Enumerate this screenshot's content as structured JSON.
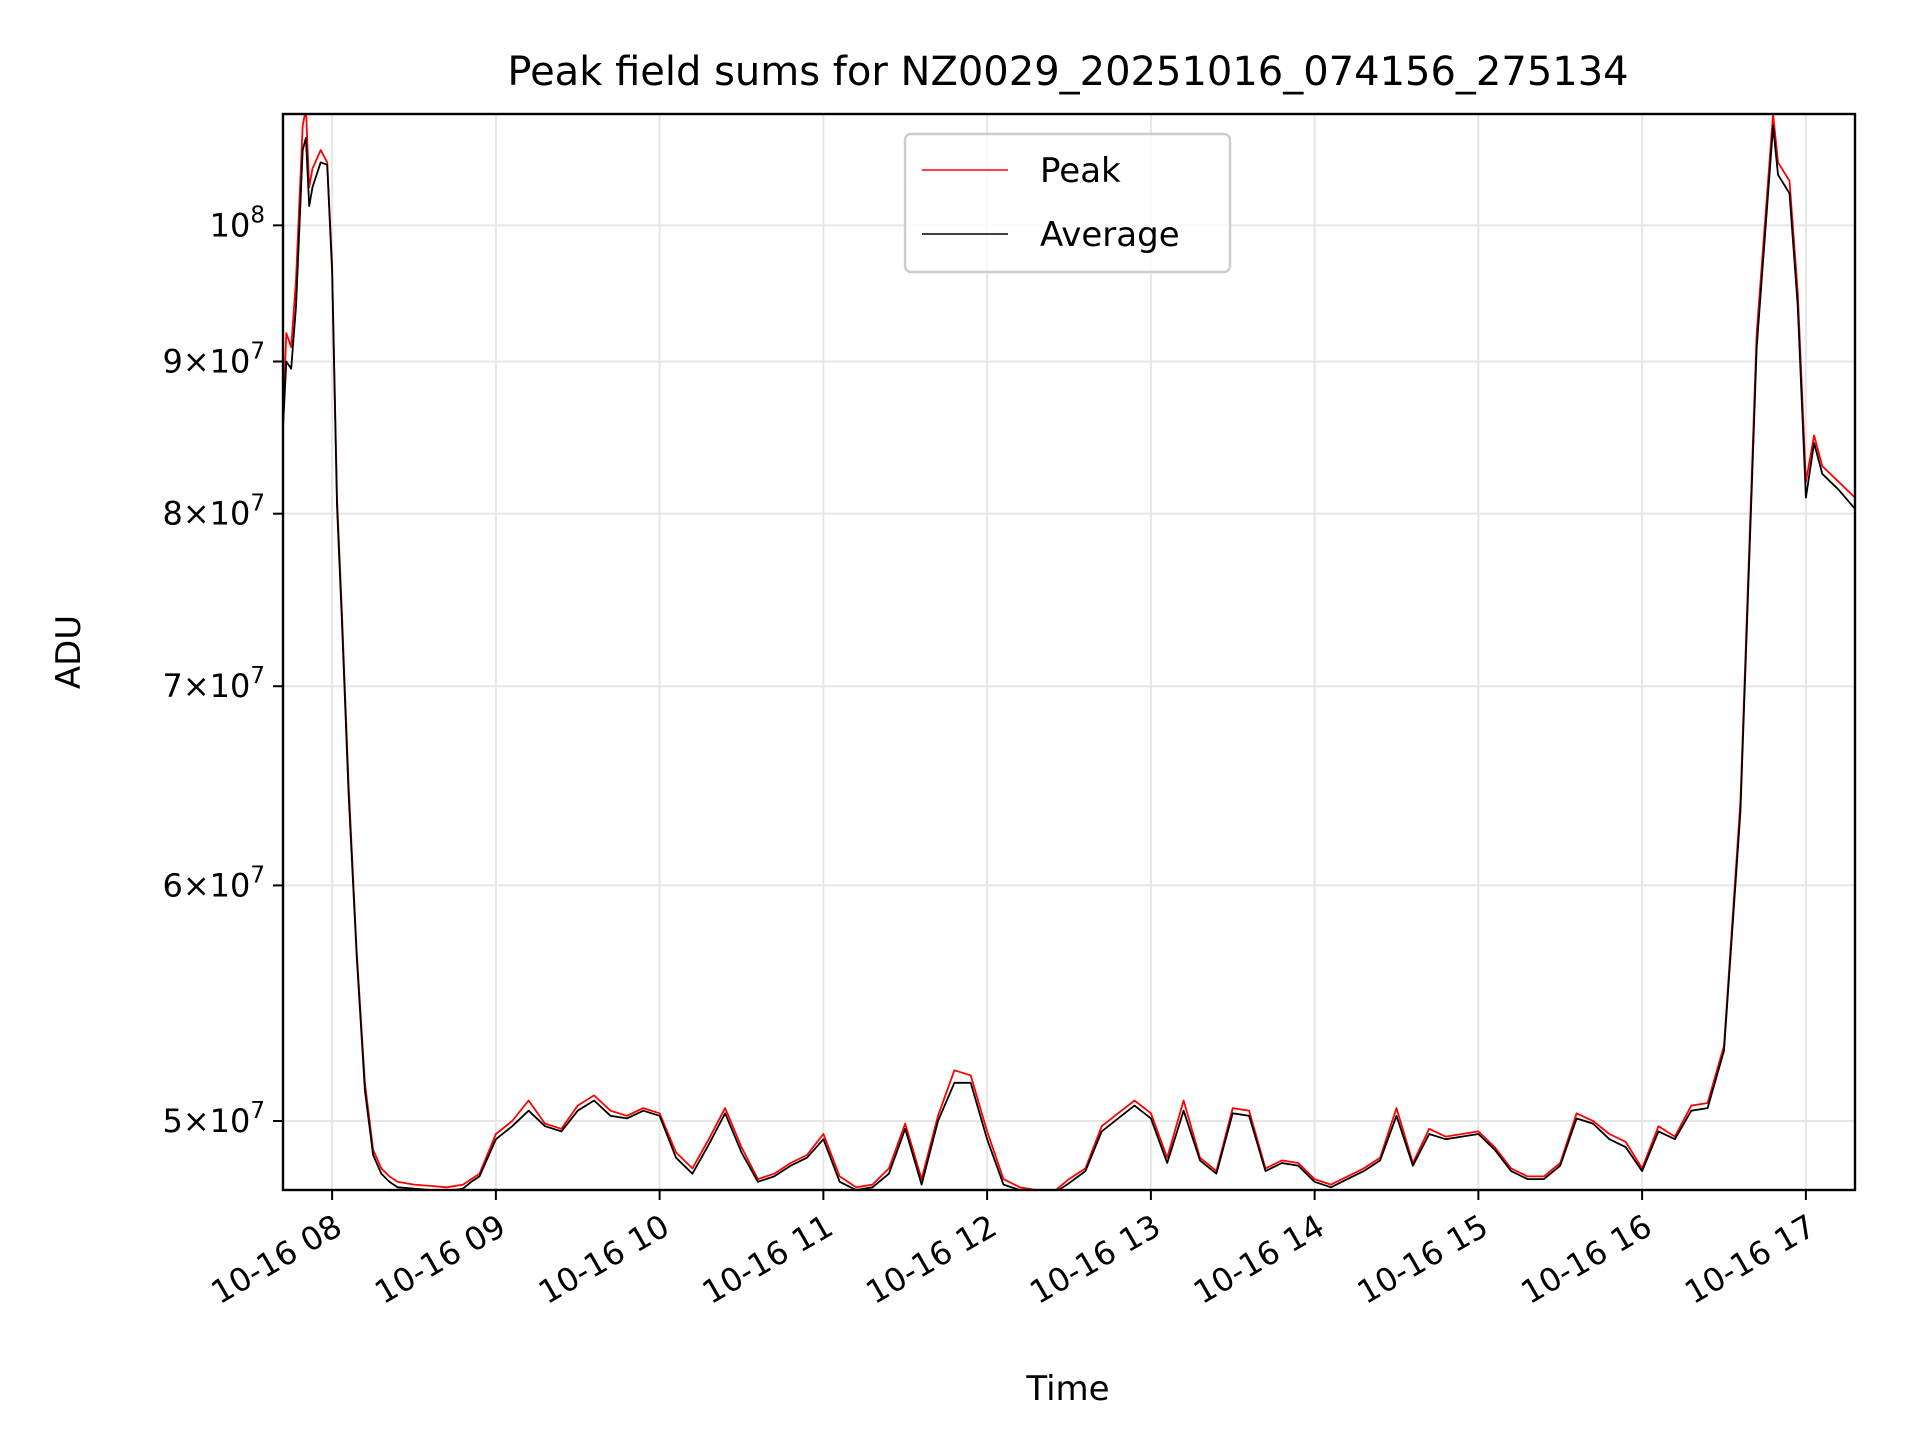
{
  "chart_data": {
    "type": "line",
    "title": "Peak field sums for NZ0029_20251016_074156_275134",
    "xlabel": "Time",
    "ylabel": "ADU",
    "yscale": "log",
    "xlim_hours": [
      7.7,
      17.3
    ],
    "ylim": [
      47400000,
      109000000
    ],
    "grid": true,
    "legend_position": "upper-center",
    "x_ticks": [
      {
        "value": 8,
        "label": "10-16 08"
      },
      {
        "value": 9,
        "label": "10-16 09"
      },
      {
        "value": 10,
        "label": "10-16 10"
      },
      {
        "value": 11,
        "label": "10-16 11"
      },
      {
        "value": 12,
        "label": "10-16 12"
      },
      {
        "value": 13,
        "label": "10-16 13"
      },
      {
        "value": 14,
        "label": "10-16 14"
      },
      {
        "value": 15,
        "label": "10-16 15"
      },
      {
        "value": 16,
        "label": "10-16 16"
      },
      {
        "value": 17,
        "label": "10-16 17"
      }
    ],
    "y_ticks": [
      {
        "value": 100000000,
        "base": "10",
        "mant": "",
        "exp": "8"
      },
      {
        "value": 90000000,
        "base": "10",
        "mant": "9",
        "exp": "7"
      },
      {
        "value": 80000000,
        "base": "10",
        "mant": "8",
        "exp": "7"
      },
      {
        "value": 70000000,
        "base": "10",
        "mant": "7",
        "exp": "7"
      },
      {
        "value": 60000000,
        "base": "10",
        "mant": "6",
        "exp": "7"
      },
      {
        "value": 50000000,
        "base": "10",
        "mant": "5",
        "exp": "7"
      }
    ],
    "series": [
      {
        "name": "Peak",
        "color": "#ff0000",
        "x": [
          7.7,
          7.72,
          7.75,
          7.78,
          7.82,
          7.84,
          7.86,
          7.88,
          7.93,
          7.97,
          8.0,
          8.03,
          8.06,
          8.1,
          8.15,
          8.2,
          8.25,
          8.3,
          8.35,
          8.4,
          8.5,
          8.6,
          8.7,
          8.8,
          8.85,
          8.9,
          9.0,
          9.1,
          9.2,
          9.3,
          9.4,
          9.5,
          9.6,
          9.7,
          9.8,
          9.9,
          10.0,
          10.1,
          10.2,
          10.3,
          10.4,
          10.5,
          10.6,
          10.7,
          10.8,
          10.9,
          11.0,
          11.1,
          11.2,
          11.3,
          11.4,
          11.5,
          11.6,
          11.7,
          11.8,
          11.9,
          12.0,
          12.1,
          12.2,
          12.3,
          12.4,
          12.5,
          12.6,
          12.7,
          12.8,
          12.9,
          13.0,
          13.1,
          13.2,
          13.3,
          13.4,
          13.5,
          13.6,
          13.7,
          13.8,
          13.9,
          14.0,
          14.1,
          14.2,
          14.3,
          14.4,
          14.5,
          14.6,
          14.7,
          14.8,
          14.9,
          15.0,
          15.1,
          15.2,
          15.3,
          15.4,
          15.5,
          15.6,
          15.7,
          15.8,
          15.9,
          16.0,
          16.1,
          16.2,
          16.3,
          16.4,
          16.5,
          16.6,
          16.7,
          16.8,
          16.83,
          16.9,
          16.95,
          17.0,
          17.05,
          17.1,
          17.2,
          17.3
        ],
        "y": [
          86000000,
          92000000,
          91000000,
          96000000,
          108000000,
          109500000,
          103000000,
          104500000,
          106000000,
          105000000,
          97000000,
          81000000,
          74000000,
          65000000,
          57000000,
          51500000,
          48900000,
          48200000,
          47900000,
          47700000,
          47600000,
          47550000,
          47500000,
          47600000,
          47800000,
          48000000,
          49500000,
          50000000,
          50800000,
          49900000,
          49700000,
          50600000,
          51000000,
          50400000,
          50200000,
          50500000,
          50300000,
          48800000,
          48200000,
          49300000,
          50500000,
          49000000,
          47800000,
          48000000,
          48400000,
          48700000,
          49500000,
          47900000,
          47500000,
          47600000,
          48200000,
          49900000,
          47800000,
          50200000,
          52000000,
          51800000,
          49600000,
          47800000,
          47500000,
          47400000,
          47300000,
          47800000,
          48200000,
          49800000,
          50300000,
          50800000,
          50300000,
          48600000,
          50800000,
          48600000,
          48100000,
          50500000,
          50400000,
          48200000,
          48500000,
          48400000,
          47800000,
          47600000,
          47900000,
          48200000,
          48600000,
          50500000,
          48400000,
          49700000,
          49400000,
          49500000,
          49600000,
          49000000,
          48200000,
          47900000,
          47900000,
          48400000,
          50300000,
          50000000,
          49500000,
          49200000,
          48200000,
          49800000,
          49400000,
          50600000,
          50700000,
          53000000,
          64000000,
          92000000,
          109000000,
          105000000,
          103500000,
          95000000,
          82000000,
          85000000,
          83000000,
          82000000,
          81000000
        ]
      },
      {
        "name": "Average",
        "color": "#000000",
        "x": [
          7.7,
          7.72,
          7.75,
          7.78,
          7.82,
          7.84,
          7.86,
          7.88,
          7.93,
          7.97,
          8.0,
          8.03,
          8.06,
          8.1,
          8.15,
          8.2,
          8.25,
          8.3,
          8.35,
          8.4,
          8.5,
          8.6,
          8.7,
          8.8,
          8.85,
          8.9,
          9.0,
          9.1,
          9.2,
          9.3,
          9.4,
          9.5,
          9.6,
          9.7,
          9.8,
          9.9,
          10.0,
          10.1,
          10.2,
          10.3,
          10.4,
          10.5,
          10.6,
          10.7,
          10.8,
          10.9,
          11.0,
          11.1,
          11.2,
          11.3,
          11.4,
          11.5,
          11.6,
          11.7,
          11.8,
          11.9,
          12.0,
          12.1,
          12.2,
          12.3,
          12.4,
          12.5,
          12.6,
          12.7,
          12.8,
          12.9,
          13.0,
          13.1,
          13.2,
          13.3,
          13.4,
          13.5,
          13.6,
          13.7,
          13.8,
          13.9,
          14.0,
          14.1,
          14.2,
          14.3,
          14.4,
          14.5,
          14.6,
          14.7,
          14.8,
          14.9,
          15.0,
          15.1,
          15.2,
          15.3,
          15.4,
          15.5,
          15.6,
          15.7,
          15.8,
          15.9,
          16.0,
          16.1,
          16.2,
          16.3,
          16.4,
          16.5,
          16.6,
          16.7,
          16.8,
          16.83,
          16.9,
          16.95,
          17.0,
          17.05,
          17.1,
          17.2,
          17.3
        ],
        "y": [
          85500000,
          90000000,
          89500000,
          94000000,
          106000000,
          107000000,
          101500000,
          103000000,
          105000000,
          104800000,
          96500000,
          80500000,
          73500000,
          64500000,
          56800000,
          51200000,
          48700000,
          48000000,
          47700000,
          47500000,
          47450000,
          47400000,
          47350000,
          47450000,
          47700000,
          47900000,
          49300000,
          49800000,
          50400000,
          49800000,
          49600000,
          50400000,
          50800000,
          50200000,
          50100000,
          50400000,
          50200000,
          48600000,
          48000000,
          49100000,
          50300000,
          48800000,
          47700000,
          47900000,
          48300000,
          48600000,
          49300000,
          47700000,
          47400000,
          47500000,
          48000000,
          49700000,
          47600000,
          50000000,
          51500000,
          51500000,
          49300000,
          47600000,
          47400000,
          47350000,
          47250000,
          47650000,
          48100000,
          49600000,
          50100000,
          50600000,
          50100000,
          48400000,
          50400000,
          48500000,
          48000000,
          50300000,
          50200000,
          48100000,
          48400000,
          48300000,
          47700000,
          47500000,
          47800000,
          48100000,
          48500000,
          50200000,
          48300000,
          49500000,
          49300000,
          49400000,
          49500000,
          48900000,
          48100000,
          47800000,
          47800000,
          48300000,
          50100000,
          49900000,
          49300000,
          49000000,
          48100000,
          49600000,
          49300000,
          50400000,
          50500000,
          52800000,
          63500000,
          91000000,
          108000000,
          104000000,
          102500000,
          94000000,
          81000000,
          84500000,
          82500000,
          81500000,
          80300000
        ]
      }
    ]
  }
}
